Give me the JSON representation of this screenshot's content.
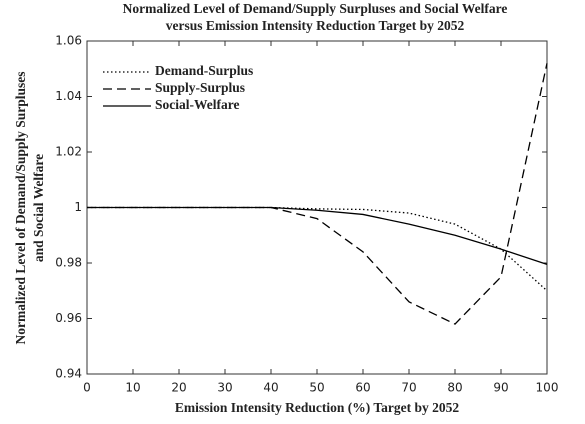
{
  "chart_data": {
    "type": "line",
    "title": [
      "Normalized Level of Demand/Supply Surpluses and Social Welfare",
      "versus Emission Intensity Reduction Target by 2052"
    ],
    "xlabel": "Emission Intensity Reduction (%) Target by 2052",
    "ylabel": [
      "Normalized Level of Demand/Supply Surpluses",
      "and Social Welfare"
    ],
    "x": [
      0,
      10,
      20,
      30,
      40,
      50,
      60,
      70,
      80,
      90,
      100
    ],
    "series": [
      {
        "name": "Demand-Surplus",
        "color": "#000000",
        "linestyle": "dotted",
        "values": [
          1,
          1,
          1,
          1,
          1,
          0.9995,
          0.9993,
          0.998,
          0.994,
          0.985,
          0.97
        ]
      },
      {
        "name": "Supply-Surplus",
        "color": "#000000",
        "linestyle": "dashed",
        "values": [
          1,
          1,
          1,
          1,
          1,
          0.996,
          0.984,
          0.966,
          0.958,
          0.975,
          1.052
        ]
      },
      {
        "name": "Social-Welfare",
        "color": "#000000",
        "linestyle": "solid",
        "values": [
          1,
          1,
          1,
          1,
          1,
          0.999,
          0.9975,
          0.994,
          0.99,
          0.985,
          0.9795
        ]
      }
    ],
    "xlim": [
      0,
      100
    ],
    "xticks": [
      0,
      10,
      20,
      30,
      40,
      50,
      60,
      70,
      80,
      90,
      100
    ],
    "ylim": [
      0.94,
      1.06
    ],
    "yticks": [
      0.94,
      0.96,
      0.98,
      1,
      1.02,
      1.04,
      1.06
    ],
    "grid": false,
    "legend": "upper-left"
  }
}
